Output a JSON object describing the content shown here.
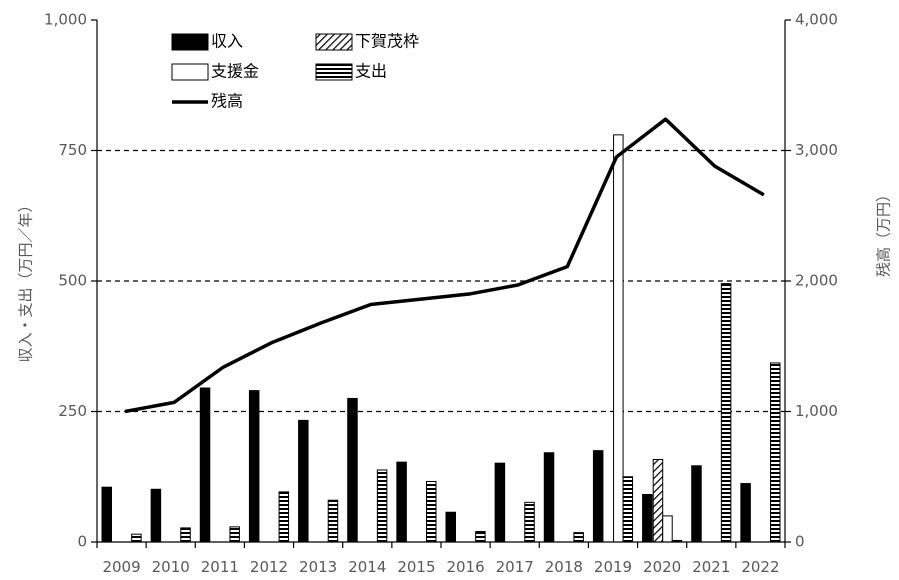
{
  "chart_data": {
    "type": "bar",
    "categories": [
      "2009",
      "2010",
      "2011",
      "2012",
      "2013",
      "2014",
      "2015",
      "2016",
      "2017",
      "2018",
      "2019",
      "2020",
      "2021",
      "2022"
    ],
    "yleft": {
      "label": "収入・支出（万円／年）",
      "ticks": [
        "0",
        "250",
        "500",
        "750",
        "1,000"
      ],
      "range": [
        0,
        1000
      ]
    },
    "yright": {
      "label": "残高（万円）",
      "ticks": [
        "0",
        "1,000",
        "2,000",
        "3,000",
        "4,000"
      ],
      "range": [
        0,
        4000
      ]
    },
    "grid": "dashed horizontal at 250, 500, 750",
    "legend_position": "top-left inside",
    "series": [
      {
        "name": "収入",
        "kind": "bar",
        "axis": "left",
        "pattern": "solid-black",
        "values": [
          105,
          101,
          295,
          290,
          233,
          275,
          153,
          57,
          151,
          171,
          175,
          91,
          146,
          112
        ]
      },
      {
        "name": "下賀茂枠",
        "kind": "bar",
        "axis": "left",
        "pattern": "diagonal-hatch",
        "values": [
          0,
          0,
          0,
          0,
          0,
          0,
          0,
          0,
          0,
          0,
          0,
          158,
          0,
          0
        ]
      },
      {
        "name": "支援金",
        "kind": "bar",
        "axis": "left",
        "pattern": "white",
        "values": [
          0,
          0,
          0,
          0,
          0,
          0,
          0,
          0,
          0,
          0,
          780,
          50,
          0,
          0
        ]
      },
      {
        "name": "支出",
        "kind": "bar",
        "axis": "left",
        "pattern": "horizontal-stripes",
        "values": [
          15,
          27,
          29,
          96,
          80,
          138,
          116,
          20,
          76,
          18,
          125,
          3,
          495,
          343
        ]
      },
      {
        "name": "残高",
        "kind": "line",
        "axis": "right",
        "values": [
          1000,
          1070,
          1340,
          1530,
          1680,
          1820,
          1860,
          1900,
          1970,
          2110,
          2950,
          3240,
          2880,
          2660
        ]
      }
    ]
  }
}
